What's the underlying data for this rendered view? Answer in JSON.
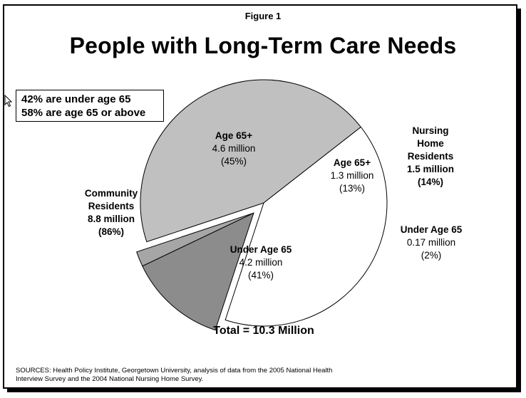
{
  "figure_label": "Figure 1",
  "title": "People with Long-Term Care Needs",
  "callout": {
    "line1": "42% are under age 65",
    "line2": "58% are age 65 or above"
  },
  "total": "Total = 10.3 Million",
  "sources": "SOURCES: Health Policy Institute, Georgetown University, analysis of data from the 2005 National Health Interview Survey and the 2004 National Nursing Home Survey.",
  "colors": {
    "community_65": "#c0c0c0",
    "community_under": "#ffffff",
    "nursing_65": "#8c8c8c",
    "nursing_under": "#a6a6a6",
    "outline": "#000000"
  },
  "chart_data": {
    "type": "pie",
    "groups": [
      {
        "name": "Community Residents",
        "value": "8.8 million",
        "percent": "(86%)",
        "slices": [
          {
            "name": "Age 65+",
            "value_label": "4.6 million",
            "percent_label": "(45%)",
            "value": 4.6,
            "percent": 45
          },
          {
            "name": "Under Age 65",
            "value_label": "4.2 million",
            "percent_label": "(41%)",
            "value": 4.2,
            "percent": 41
          }
        ]
      },
      {
        "name": "Nursing Home Residents",
        "value": "1.5 million",
        "percent": "(14%)",
        "slices": [
          {
            "name": "Age 65+",
            "value_label": "1.3 million",
            "percent_label": "(13%)",
            "value": 1.3,
            "percent": 13
          },
          {
            "name": "Under Age 65",
            "value_label": "0.17 million",
            "percent_label": "(2%)",
            "value": 0.17,
            "percent": 2
          }
        ]
      }
    ]
  }
}
